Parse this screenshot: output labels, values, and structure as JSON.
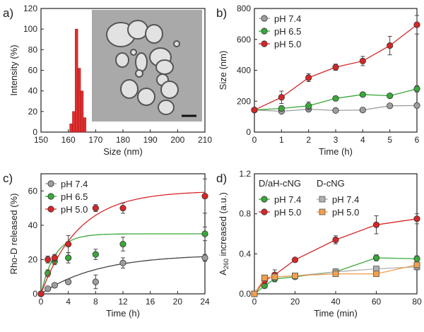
{
  "colors": {
    "ph74": "#9e9e9e",
    "ph65": "#3aa83a",
    "ph50": "#d62728",
    "dcng74": "#b0b0b0",
    "dcng50": "#f0a050",
    "hist": "#e03030",
    "tem_bg": "#a9a9a9"
  },
  "chart_data": [
    {
      "panel": "a)",
      "type": "bar",
      "xlabel": "Size (nm)",
      "ylabel": "Intensity (%)",
      "xlim": [
        150,
        210
      ],
      "ylim": [
        0,
        120
      ],
      "xticks": [
        "150",
        "160",
        "170",
        "180",
        "190",
        "200",
        "210"
      ],
      "yticks": [
        "0",
        "20",
        "40",
        "60",
        "80",
        "100",
        "120"
      ],
      "bins": [
        161,
        162,
        163,
        164,
        165,
        166
      ],
      "values": [
        8,
        20,
        100,
        62,
        40,
        14
      ],
      "inset": "TEM image"
    },
    {
      "panel": "b)",
      "type": "line",
      "xlabel": "Time (h)",
      "ylabel": "Size (nm)",
      "xlim": [
        0,
        6
      ],
      "ylim": [
        0,
        800
      ],
      "xticks": [
        "0",
        "1",
        "2",
        "3",
        "4",
        "5",
        "6"
      ],
      "yticks": [
        "0",
        "200",
        "400",
        "600",
        "800"
      ],
      "legend": "top-left",
      "series": [
        {
          "name": "pH 7.4",
          "color": "#9e9e9e",
          "x": [
            0,
            1,
            2,
            3,
            4,
            5,
            6
          ],
          "y": [
            143,
            135,
            148,
            140,
            143,
            170,
            172
          ],
          "err": [
            5,
            10,
            12,
            8,
            8,
            10,
            10
          ]
        },
        {
          "name": "pH 6.5",
          "color": "#3aa83a",
          "x": [
            0,
            1,
            2,
            3,
            4,
            5,
            6
          ],
          "y": [
            143,
            153,
            170,
            218,
            243,
            235,
            280
          ],
          "err": [
            5,
            15,
            25,
            10,
            10,
            10,
            20
          ]
        },
        {
          "name": "pH 5.0",
          "color": "#d62728",
          "x": [
            0,
            1,
            2,
            3,
            4,
            5,
            6
          ],
          "y": [
            143,
            225,
            352,
            420,
            460,
            560,
            695
          ],
          "err": [
            5,
            40,
            25,
            20,
            30,
            60,
            60
          ]
        }
      ]
    },
    {
      "panel": "c)",
      "type": "line",
      "xlabel": "Time (h)",
      "ylabel": "Rho-D released (%)",
      "xlim": [
        0,
        24
      ],
      "ylim": [
        0,
        70
      ],
      "xticks": [
        "0",
        "4",
        "8",
        "12",
        "16",
        "20",
        "24"
      ],
      "yticks": [
        "0",
        "20",
        "40",
        "60"
      ],
      "legend": "top-left",
      "series": [
        {
          "name": "pH 7.4",
          "color": "#9e9e9e",
          "x": [
            0,
            1,
            2,
            4,
            8,
            12,
            24
          ],
          "y": [
            0,
            3,
            5,
            7,
            7,
            18,
            21
          ],
          "err": [
            0,
            1,
            1,
            1,
            4,
            3,
            2
          ],
          "fit_k": 0.12,
          "fit_a": 23
        },
        {
          "name": "pH 6.5",
          "color": "#3aa83a",
          "x": [
            0,
            1,
            2,
            4,
            8,
            12,
            24
          ],
          "y": [
            0,
            12,
            19,
            21,
            23,
            29,
            35
          ],
          "err": [
            0,
            2,
            2,
            3,
            3,
            4,
            4
          ],
          "fit_k": 0.5,
          "fit_a": 35
        },
        {
          "name": "pH 5.0",
          "color": "#d62728",
          "x": [
            0,
            1,
            2,
            4,
            8,
            12,
            24
          ],
          "y": [
            0,
            20,
            21,
            29,
            50,
            50,
            57
          ],
          "err": [
            0,
            2,
            2,
            5,
            2,
            3,
            10
          ],
          "fit_k": 0.18,
          "fit_a": 60
        }
      ]
    },
    {
      "panel": "d)",
      "type": "line",
      "xlabel": "Time (min)",
      "ylabel": "A260 increased (a.u.)",
      "xlim": [
        0,
        80
      ],
      "ylim": [
        0,
        1.2
      ],
      "xticks": [
        "0",
        "20",
        "40",
        "60",
        "80"
      ],
      "yticks": [
        "0.0",
        "0.4",
        "0.8",
        "1.2"
      ],
      "legend_groups": [
        "D/aH-cNG",
        "D-cNG"
      ],
      "series": [
        {
          "name": "pH 7.4",
          "group": "D/aH-cNG",
          "color": "#3aa83a",
          "marker": "circle",
          "x": [
            0,
            5,
            10,
            20,
            40,
            60,
            80
          ],
          "y": [
            0,
            0.08,
            0.15,
            0.17,
            0.22,
            0.36,
            0.35
          ],
          "err": [
            0,
            0.02,
            0.03,
            0.02,
            0.03,
            0.03,
            0.03
          ]
        },
        {
          "name": "pH 5.0",
          "group": "D/aH-cNG",
          "color": "#d62728",
          "marker": "circle",
          "x": [
            0,
            5,
            10,
            20,
            40,
            60,
            80
          ],
          "y": [
            0,
            0.13,
            0.19,
            0.34,
            0.54,
            0.69,
            0.75
          ],
          "err": [
            0,
            0.02,
            0.05,
            0.02,
            0.04,
            0.09,
            0.05
          ]
        },
        {
          "name": "pH 7.4",
          "group": "D-cNG",
          "color": "#b0b0b0",
          "marker": "square",
          "x": [
            0,
            5,
            10,
            20,
            40,
            60,
            80
          ],
          "y": [
            0,
            0.16,
            0.17,
            0.18,
            0.22,
            0.25,
            0.27
          ],
          "err": [
            0,
            0.02,
            0.02,
            0.02,
            0.02,
            0.02,
            0.03
          ]
        },
        {
          "name": "pH 5.0",
          "group": "D-cNG",
          "color": "#f0a050",
          "marker": "square",
          "x": [
            0,
            5,
            10,
            20,
            40,
            60,
            80
          ],
          "y": [
            0,
            0.16,
            0.17,
            0.18,
            0.2,
            0.2,
            0.29
          ],
          "err": [
            0,
            0.02,
            0.02,
            0.02,
            0.02,
            0.02,
            0.03
          ]
        }
      ]
    }
  ]
}
